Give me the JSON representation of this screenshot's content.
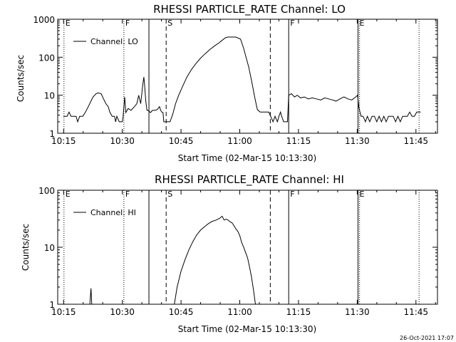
{
  "chart_data": [
    {
      "type": "line",
      "title": "RHESSI PARTICLE_RATE Channel: LO",
      "xlabel": "Start Time (02-Mar-15 10:13:30)",
      "ylabel": "Counts/sec",
      "y_scale": "log",
      "ylim": [
        1,
        1000
      ],
      "xlim": [
        "10:13:30",
        "11:50:30"
      ],
      "x_tick_labels": [
        "10:15",
        "10:30",
        "10:45",
        "11:00",
        "11:15",
        "11:30",
        "11:45"
      ],
      "x_tick_values_min": [
        15,
        30,
        45,
        60,
        75,
        90,
        105
      ],
      "y_tick_labels": [
        "1",
        "10",
        "100",
        "1000"
      ],
      "y_tick_values": [
        1,
        10,
        100,
        1000
      ],
      "legend": {
        "entries": [
          "Channel: LO"
        ],
        "position": "top-left"
      },
      "markers": [
        {
          "label": "E",
          "time_min": 15.1,
          "style": "dotted"
        },
        {
          "label": "F",
          "time_min": 30.4,
          "style": "dotted"
        },
        {
          "label": "",
          "time_min": 36.8,
          "style": "solid"
        },
        {
          "label": "S",
          "time_min": 41.2,
          "style": "dashed"
        },
        {
          "label": "",
          "time_min": 67.8,
          "style": "dashed"
        },
        {
          "label": "F",
          "time_min": 72.5,
          "style": "solid"
        },
        {
          "label": "E",
          "time_min": 90.2,
          "style": "solid"
        },
        {
          "label": "",
          "time_min": 90.6,
          "style": "dotted"
        },
        {
          "label": "",
          "time_min": 105.8,
          "style": "dotted"
        }
      ],
      "series": [
        {
          "name": "Channel: LO",
          "x_min": [
            15.0,
            15.9,
            16.4,
            16.9,
            17.4,
            18.2,
            18.6,
            19.1,
            19.9,
            20.6,
            21.3,
            22.0,
            22.5,
            23.3,
            23.8,
            24.6,
            25.2,
            25.8,
            26.4,
            26.8,
            27.4,
            28.0,
            28.3,
            28.6,
            29.2,
            29.6,
            30.0,
            30.2,
            30.4,
            30.6,
            30.9,
            31.5,
            32.2,
            33.1,
            33.7,
            34.2,
            34.7,
            35.2,
            35.5,
            35.7,
            36.0,
            36.3,
            36.6,
            37.2,
            37.7,
            38.3,
            38.9,
            39.5,
            39.8,
            40.2,
            40.4,
            40.6,
            41.0,
            41.6,
            42.2,
            42.9,
            43.6,
            44.4,
            45.5,
            46.5,
            47.7,
            48.9,
            50.0,
            51.2,
            52.4,
            53.6,
            54.7,
            55.7,
            56.4,
            57.0,
            57.8,
            59.0,
            60.2,
            61.0,
            61.6,
            62.3,
            63.1,
            63.8,
            64.5,
            65.2,
            66.0,
            66.7,
            67.4,
            67.9,
            68.5,
            69.0,
            69.6,
            70.0,
            70.4,
            70.7,
            71.2,
            72.2,
            72.5,
            73.2,
            74.0,
            74.7,
            75.5,
            76.5,
            77.5,
            78.5,
            79.6,
            80.7,
            81.7,
            82.7,
            83.7,
            84.6,
            85.6,
            86.6,
            87.6,
            88.6,
            89.6,
            90.1,
            90.4,
            90.7,
            91.0,
            91.5,
            92.1,
            92.6,
            93.2,
            93.8,
            94.4,
            95.0,
            95.6,
            96.2,
            96.8,
            97.4,
            98.0,
            98.6,
            99.2,
            99.8,
            100.4,
            101.0,
            101.6,
            102.2,
            102.8,
            103.4,
            104.0,
            104.6,
            105.2,
            105.6,
            106.2
          ],
          "y_counts": [
            2.8,
            2.8,
            3.6,
            2.8,
            2.8,
            2.8,
            2.0,
            2.8,
            2.8,
            3.6,
            5.0,
            7.0,
            9.0,
            11.0,
            11.5,
            11.0,
            8.0,
            6.0,
            5.0,
            3.6,
            2.8,
            2.8,
            2.0,
            2.8,
            2.0,
            2.0,
            2.0,
            2.8,
            5.0,
            9.0,
            3.5,
            4.5,
            4.0,
            5.0,
            6.0,
            10.0,
            6.0,
            18.0,
            30.0,
            18.0,
            7.0,
            4.0,
            4.0,
            3.5,
            4.0,
            4.0,
            4.2,
            5.0,
            4.0,
            3.5,
            3.5,
            2.0,
            2.0,
            2.0,
            2.0,
            3.2,
            6.0,
            10.0,
            18.0,
            30.0,
            48.0,
            70.0,
            95.0,
            125.0,
            160.0,
            200.0,
            240.0,
            290.0,
            330.0,
            340.0,
            340.0,
            340.0,
            300.0,
            170.0,
            100.0,
            55.0,
            22.0,
            9.0,
            4.2,
            3.6,
            3.6,
            3.6,
            3.6,
            2.8,
            2.0,
            2.8,
            2.0,
            2.8,
            3.6,
            2.8,
            2.0,
            2.0,
            10.0,
            11.0,
            9.0,
            10.0,
            8.5,
            9.0,
            8.0,
            8.5,
            8.0,
            7.5,
            8.5,
            8.0,
            7.5,
            7.0,
            8.0,
            9.0,
            8.0,
            7.5,
            9.0,
            10.0,
            5.0,
            3.6,
            2.8,
            2.8,
            2.0,
            2.8,
            2.0,
            2.8,
            2.8,
            2.0,
            2.8,
            2.0,
            2.8,
            2.0,
            2.8,
            2.8,
            2.8,
            2.0,
            2.8,
            2.0,
            2.8,
            2.8,
            2.8,
            3.6,
            2.8,
            2.8,
            3.6,
            3.6,
            3.6
          ]
        }
      ]
    },
    {
      "type": "line",
      "title": "RHESSI PARTICLE_RATE Channel: HI",
      "xlabel": "Start Time (02-Mar-15 10:13:30)",
      "ylabel": "Counts/sec",
      "y_scale": "log",
      "ylim": [
        1,
        100
      ],
      "xlim": [
        "10:13:30",
        "11:50:30"
      ],
      "x_tick_labels": [
        "10:15",
        "10:30",
        "10:45",
        "11:00",
        "11:15",
        "11:30",
        "11:45"
      ],
      "x_tick_values_min": [
        15,
        30,
        45,
        60,
        75,
        90,
        105
      ],
      "y_tick_labels": [
        "1",
        "10",
        "100"
      ],
      "y_tick_values": [
        1,
        10,
        100
      ],
      "legend": {
        "entries": [
          "Channel: HI"
        ],
        "position": "top-left"
      },
      "markers": [
        {
          "label": "E",
          "time_min": 15.1,
          "style": "dotted"
        },
        {
          "label": "F",
          "time_min": 30.4,
          "style": "dotted"
        },
        {
          "label": "",
          "time_min": 36.8,
          "style": "solid"
        },
        {
          "label": "S",
          "time_min": 41.2,
          "style": "dashed"
        },
        {
          "label": "",
          "time_min": 67.8,
          "style": "dashed"
        },
        {
          "label": "F",
          "time_min": 72.5,
          "style": "solid"
        },
        {
          "label": "E",
          "time_min": 90.2,
          "style": "solid"
        },
        {
          "label": "",
          "time_min": 90.6,
          "style": "dotted"
        },
        {
          "label": "",
          "time_min": 105.8,
          "style": "dotted"
        }
      ],
      "series": [
        {
          "name": "Channel: HI",
          "segments": [
            {
              "x_min": [
                21.7,
                22.0,
                22.2
              ],
              "y_counts": [
                1.0,
                1.9,
                1.0
              ]
            },
            {
              "x_min": [
                43.3,
                44.0,
                45.0,
                46.0,
                47.0,
                48.0,
                49.0,
                50.0,
                51.0,
                52.0,
                53.0,
                54.0,
                54.8,
                55.5,
                56.0,
                56.5,
                57.0,
                57.5,
                58.0,
                58.5,
                59.0,
                59.5,
                60.0,
                60.5,
                61.0,
                61.5,
                62.0,
                62.5,
                63.0,
                63.5,
                64.0
              ],
              "y_counts": [
                1.0,
                2.0,
                3.8,
                6.0,
                9.0,
                12.5,
                16.5,
                20.0,
                23.0,
                26.0,
                28.5,
                30.0,
                32.0,
                35.0,
                30.0,
                31.0,
                30.0,
                28.0,
                27.0,
                24.0,
                21.0,
                19.0,
                16.0,
                12.0,
                10.0,
                8.0,
                6.5,
                4.5,
                3.0,
                1.8,
                1.0
              ]
            }
          ]
        }
      ]
    }
  ],
  "footer": {
    "timestamp": "26-Oct-2021 17:07"
  }
}
